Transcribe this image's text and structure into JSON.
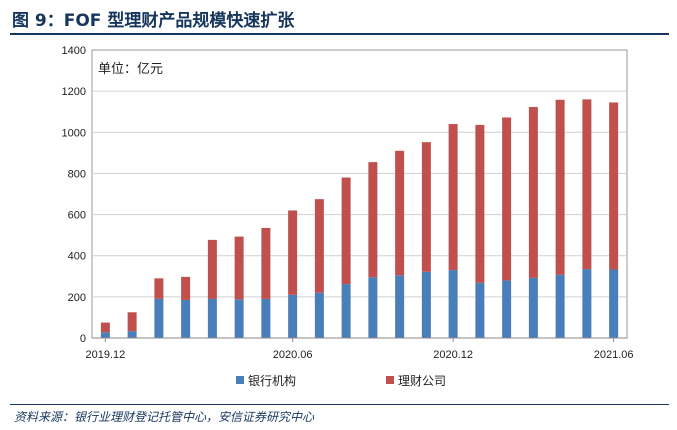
{
  "header": {
    "title": "图 9：FOF 型理财产品规模快速扩张"
  },
  "footer": {
    "source": "资料来源：银行业理财登记托管中心，安信证券研究中心"
  },
  "chart_data": {
    "type": "bar",
    "stacked": true,
    "unit_label": "单位：亿元",
    "ylim": [
      0,
      1400
    ],
    "yticks": [
      0,
      200,
      400,
      600,
      800,
      1000,
      1200,
      1400
    ],
    "x_tick_labels": [
      {
        "index": 0,
        "label": "2019.12"
      },
      {
        "index": 7,
        "label": "2020.06"
      },
      {
        "index": 13,
        "label": "2020.12"
      },
      {
        "index": 19,
        "label": "2021.06"
      }
    ],
    "categories_count": 20,
    "grid": true,
    "legend_position": "bottom",
    "series": [
      {
        "name": "银行机构",
        "color": "#4a7ebb",
        "values": [
          28,
          33,
          190,
          185,
          190,
          188,
          190,
          210,
          220,
          262,
          295,
          305,
          322,
          330,
          268,
          280,
          292,
          308,
          335,
          333
        ]
      },
      {
        "name": "理财公司",
        "color": "#c0504d",
        "values": [
          47,
          92,
          100,
          112,
          287,
          305,
          345,
          410,
          455,
          518,
          560,
          605,
          630,
          710,
          768,
          792,
          831,
          850,
          825,
          812
        ]
      }
    ]
  }
}
